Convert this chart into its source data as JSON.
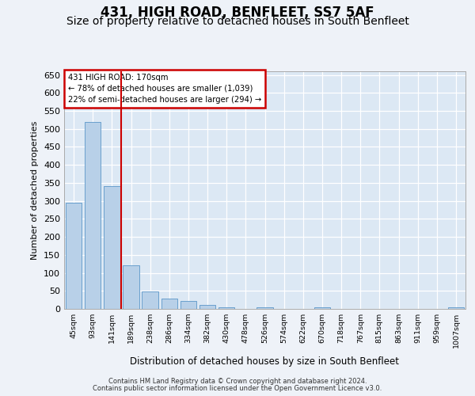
{
  "title": "431, HIGH ROAD, BENFLEET, SS7 5AF",
  "subtitle": "Size of property relative to detached houses in South Benfleet",
  "xlabel": "Distribution of detached houses by size in South Benfleet",
  "ylabel": "Number of detached properties",
  "categories": [
    "45sqm",
    "93sqm",
    "141sqm",
    "189sqm",
    "238sqm",
    "286sqm",
    "334sqm",
    "382sqm",
    "430sqm",
    "478sqm",
    "526sqm",
    "574sqm",
    "622sqm",
    "670sqm",
    "718sqm",
    "767sqm",
    "815sqm",
    "863sqm",
    "911sqm",
    "959sqm",
    "1007sqm"
  ],
  "values": [
    295,
    520,
    340,
    120,
    48,
    28,
    22,
    10,
    5,
    0,
    5,
    0,
    0,
    5,
    0,
    0,
    0,
    0,
    0,
    0,
    5
  ],
  "bar_color": "#b8d0e8",
  "bar_edge_color": "#5a96c8",
  "highlight_line_color": "#cc0000",
  "annotation_text": "431 HIGH ROAD: 170sqm\n← 78% of detached houses are smaller (1,039)\n22% of semi-detached houses are larger (294) →",
  "annotation_box_color": "#cc0000",
  "ylim": [
    0,
    660
  ],
  "fig_bg_color": "#eef2f8",
  "plot_bg_color": "#dce8f4",
  "footer_line1": "Contains HM Land Registry data © Crown copyright and database right 2024.",
  "footer_line2": "Contains public sector information licensed under the Open Government Licence v3.0.",
  "title_fontsize": 12,
  "subtitle_fontsize": 10,
  "bar_width": 0.85
}
